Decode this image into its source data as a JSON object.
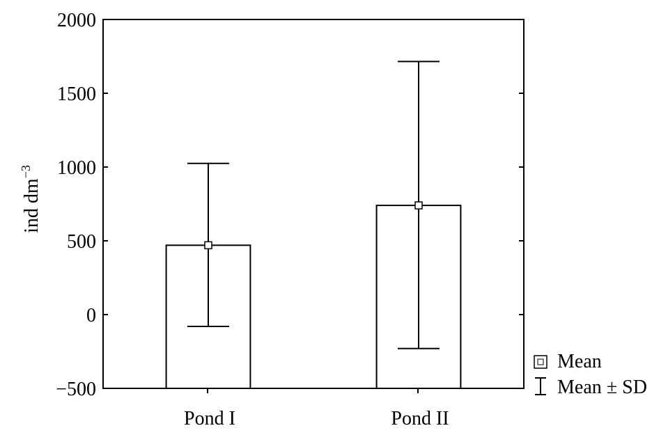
{
  "chart_data": {
    "type": "bar",
    "categories": [
      "Pond I",
      "Pond II"
    ],
    "values": [
      470,
      740
    ],
    "error_low": [
      -80,
      -230
    ],
    "error_high": [
      1025,
      1715
    ],
    "ylabel": "ind dm",
    "ylabel_superscript": "−3",
    "ylim": [
      -500,
      2000
    ],
    "yticks": [
      -500,
      0,
      500,
      1000,
      1500,
      2000
    ],
    "ytick_labels": [
      "−500",
      "0",
      "500",
      "1000",
      "1500",
      "2000"
    ],
    "grid": false,
    "legend_position": "bottom-right-outside",
    "legend": {
      "mean_label": "Mean",
      "sd_label": "Mean ± SD"
    }
  }
}
